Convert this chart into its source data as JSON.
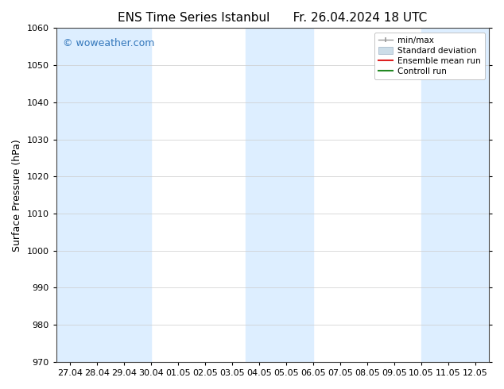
{
  "title": "ENS Time Series Istanbul",
  "title2": "Fr. 26.04.2024 18 UTC",
  "ylabel": "Surface Pressure (hPa)",
  "ylim": [
    970,
    1060
  ],
  "yticks": [
    970,
    980,
    990,
    1000,
    1010,
    1020,
    1030,
    1040,
    1050,
    1060
  ],
  "watermark": "© woweather.com",
  "watermark_color": "#3377bb",
  "bg_color": "#ffffff",
  "plot_bg_color": "#ffffff",
  "shaded_band_color": "#ddeeff",
  "legend_entries": [
    "min/max",
    "Standard deviation",
    "Ensemble mean run",
    "Controll run"
  ],
  "legend_colors_line": [
    "#aaaaaa",
    "#bbccdd",
    "#dd2222",
    "#228822"
  ],
  "xtick_labels": [
    "27.04",
    "28.04",
    "29.04",
    "30.04",
    "01.05",
    "02.05",
    "03.05",
    "04.05",
    "05.05",
    "06.05",
    "07.05",
    "08.05",
    "09.05",
    "10.05",
    "11.05",
    "12.05"
  ],
  "shaded_column_ranges": [
    [
      0.0,
      1.0
    ],
    [
      1.5,
      2.5
    ],
    [
      7.0,
      8.5
    ],
    [
      13.5,
      15.5
    ]
  ],
  "fig_width": 6.34,
  "fig_height": 4.9,
  "dpi": 100,
  "title_fontsize": 11,
  "axis_label_fontsize": 9,
  "tick_fontsize": 8,
  "legend_fontsize": 7.5,
  "watermark_fontsize": 9
}
